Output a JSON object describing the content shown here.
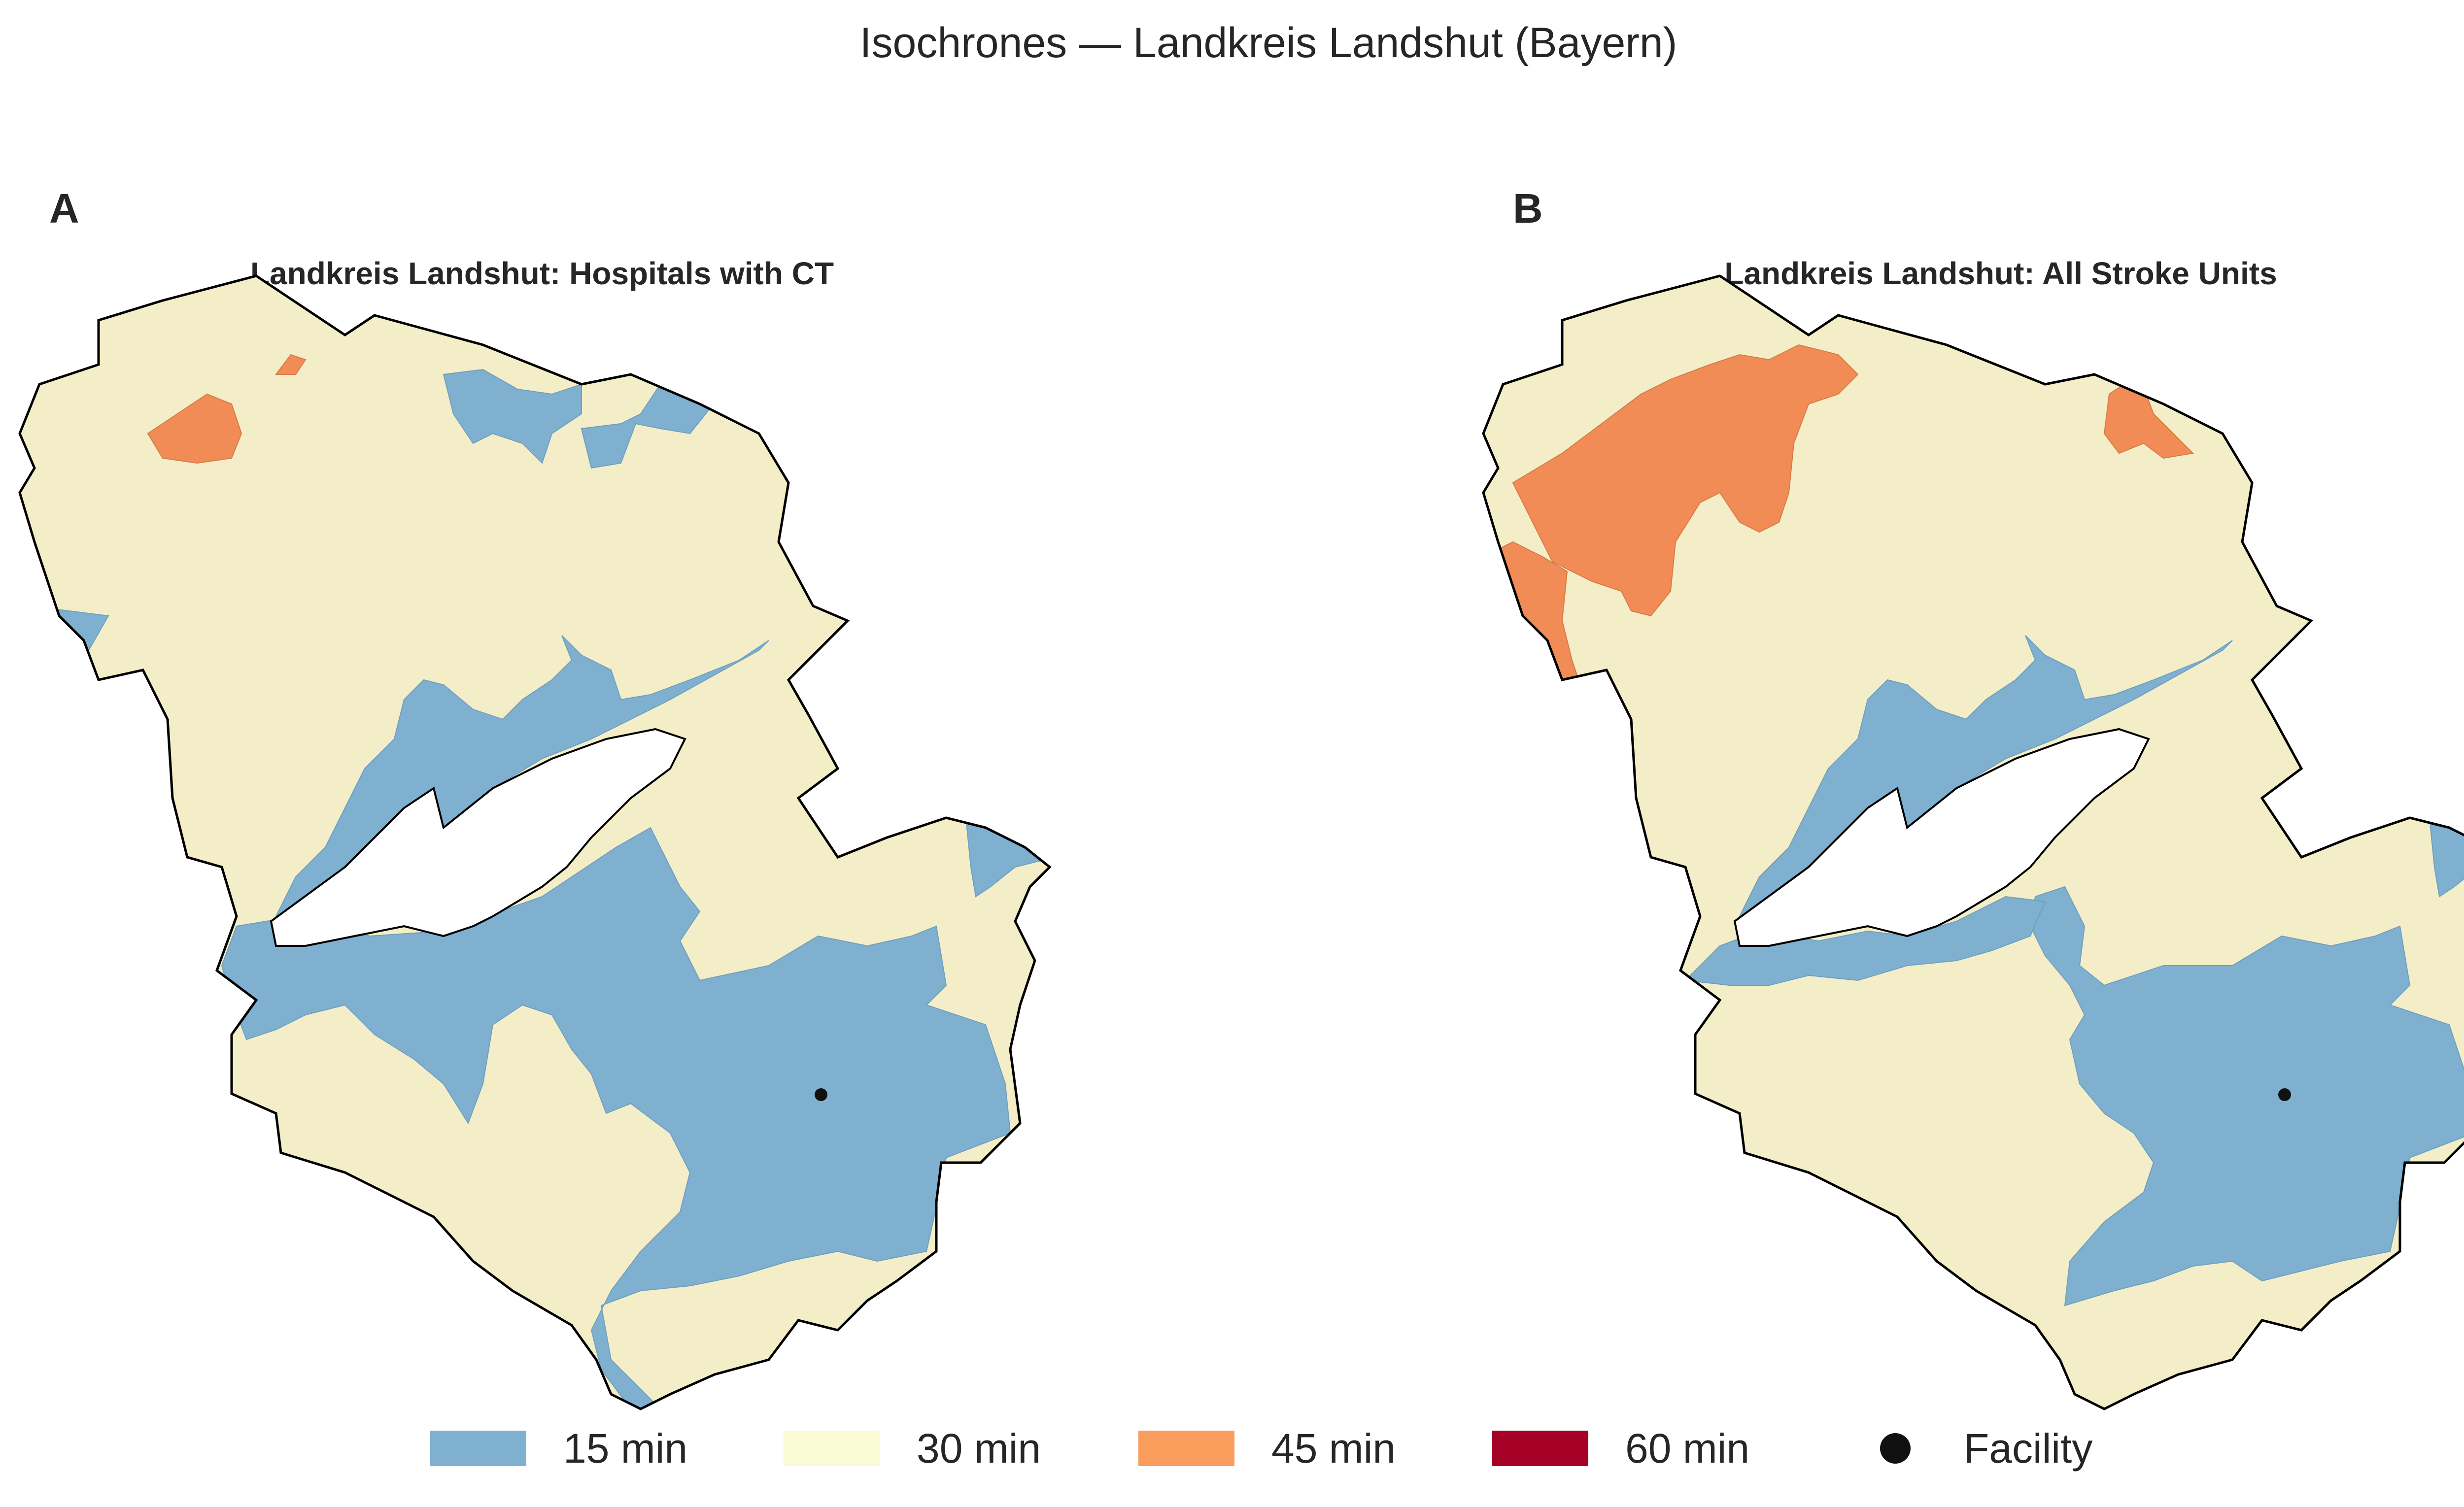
{
  "title": "Isochrones — Landkreis Landshut (Bayern)",
  "colors": {
    "min15": "#7fb0d0",
    "min30": "#f3eec7",
    "min45": "#f28c56",
    "min60": "#a50026",
    "facility": "#111111",
    "outline": "#000000"
  },
  "panels": [
    {
      "letter": "A",
      "title": "Landkreis Landshut: Hospitals with CT"
    },
    {
      "letter": "B",
      "title": "Landkreis Landshut: All Stroke Units"
    }
  ],
  "legend": [
    {
      "label": "15 min",
      "color": "#7fb0d0",
      "kind": "patch"
    },
    {
      "label": "30 min",
      "color": "#f8fbd3",
      "kind": "patch"
    },
    {
      "label": "45 min",
      "color": "#fa9c5b",
      "kind": "patch"
    },
    {
      "label": "60 min",
      "color": "#a50026",
      "kind": "patch"
    },
    {
      "label": "Facility",
      "color": "#111111",
      "kind": "dot"
    }
  ]
}
